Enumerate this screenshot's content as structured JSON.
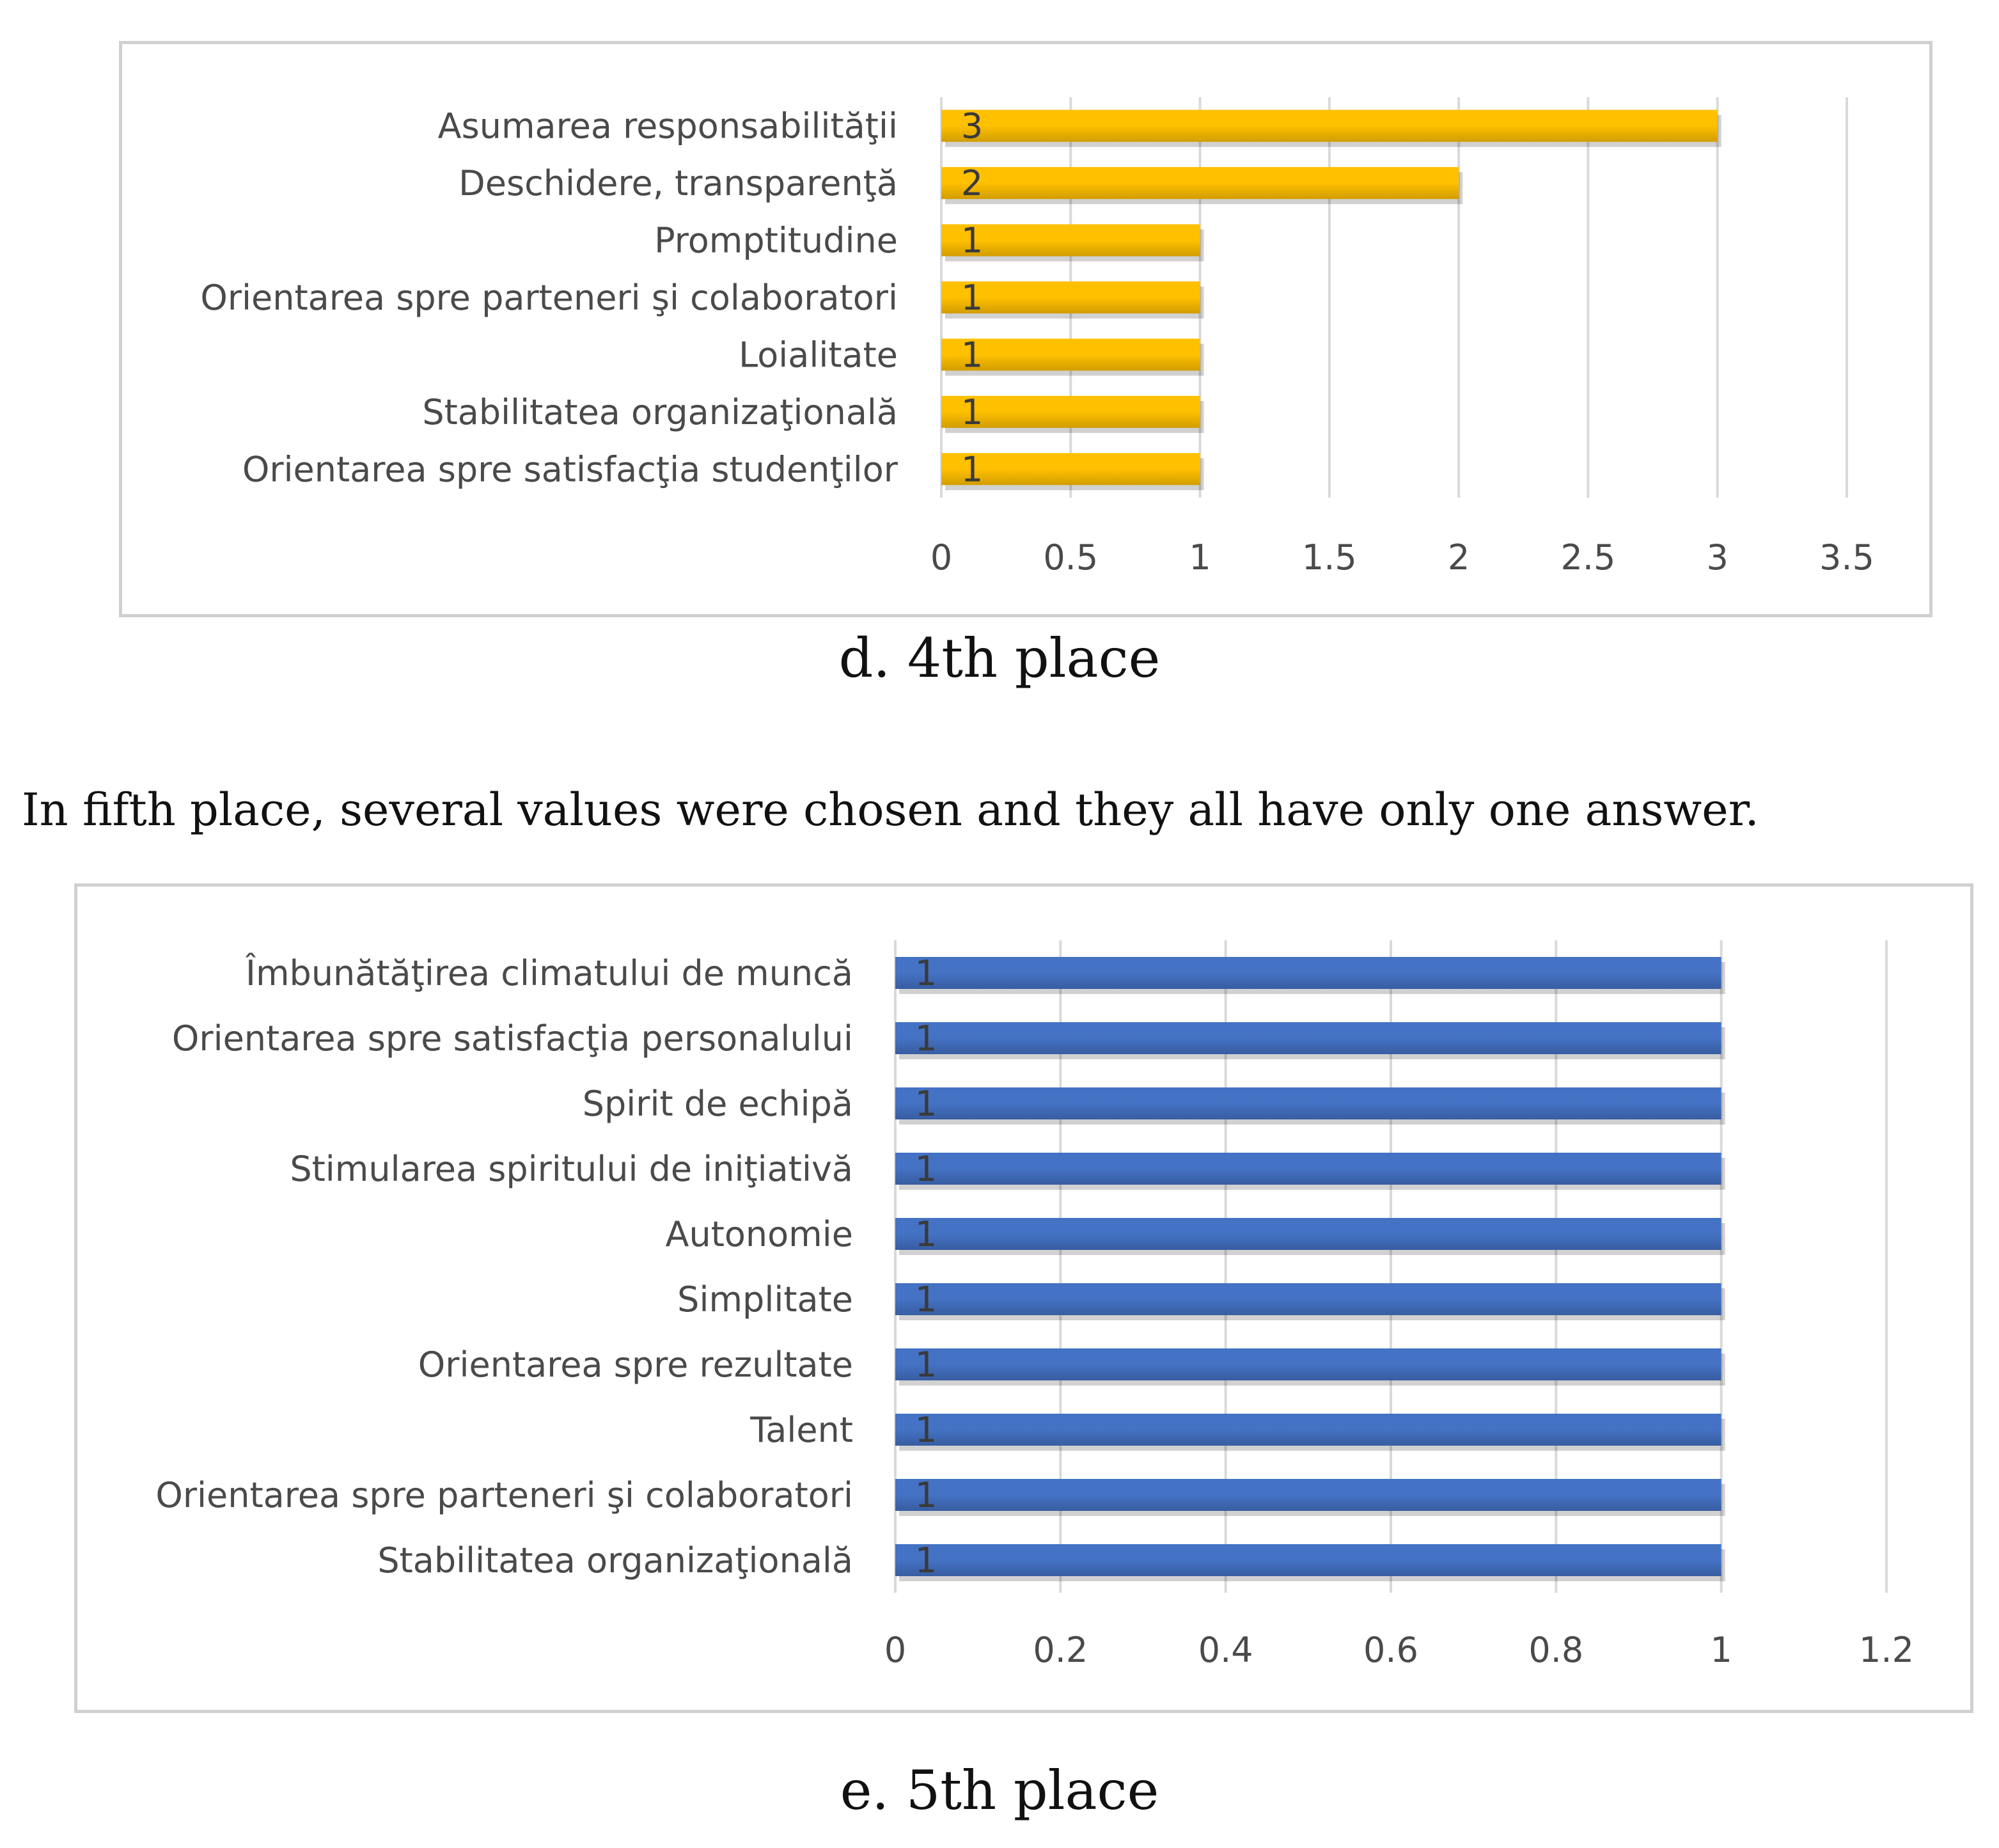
{
  "text": {
    "caption_d": "d. 4th place",
    "paragraph": "In fifth place, several values were chosen and they all have only one answer.",
    "caption_e": "e. 5th place"
  },
  "chart_data": [
    {
      "type": "bar",
      "orientation": "horizontal",
      "categories": [
        "Asumarea responsabilităţii",
        "Deschidere, transparenţă",
        "Promptitudine",
        "Orientarea spre parteneri şi colaboratori",
        "Loialitate",
        "Stabilitatea organizaţională",
        "Orientarea spre satisfacţia studenţilor"
      ],
      "values": [
        3,
        2,
        1,
        1,
        1,
        1,
        1
      ],
      "data_labels": [
        "3",
        "2",
        "1",
        "1",
        "1",
        "1",
        "1"
      ],
      "xlim": [
        0,
        3.5
      ],
      "xticks": [
        "0",
        "0.5",
        "1",
        "1.5",
        "2",
        "2.5",
        "3",
        "3.5"
      ],
      "grid": true,
      "color": "#ffc000",
      "title": "",
      "xlabel": "",
      "ylabel": ""
    },
    {
      "type": "bar",
      "orientation": "horizontal",
      "categories": [
        "Îmbunătăţirea climatului de muncă",
        "Orientarea spre satisfacţia personalului",
        "Spirit de echipă",
        "Stimularea spiritului de iniţiativă",
        "Autonomie",
        "Simplitate",
        "Orientarea spre rezultate",
        "Talent",
        "Orientarea spre parteneri şi colaboratori",
        "Stabilitatea organizaţională"
      ],
      "values": [
        1,
        1,
        1,
        1,
        1,
        1,
        1,
        1,
        1,
        1
      ],
      "data_labels": [
        "1",
        "1",
        "1",
        "1",
        "1",
        "1",
        "1",
        "1",
        "1",
        "1"
      ],
      "xlim": [
        0,
        1.2
      ],
      "xticks": [
        "0",
        "0.2",
        "0.4",
        "0.6",
        "0.8",
        "1",
        "1.2"
      ],
      "grid": true,
      "color": "#4472c4",
      "title": "",
      "xlabel": "",
      "ylabel": ""
    }
  ]
}
